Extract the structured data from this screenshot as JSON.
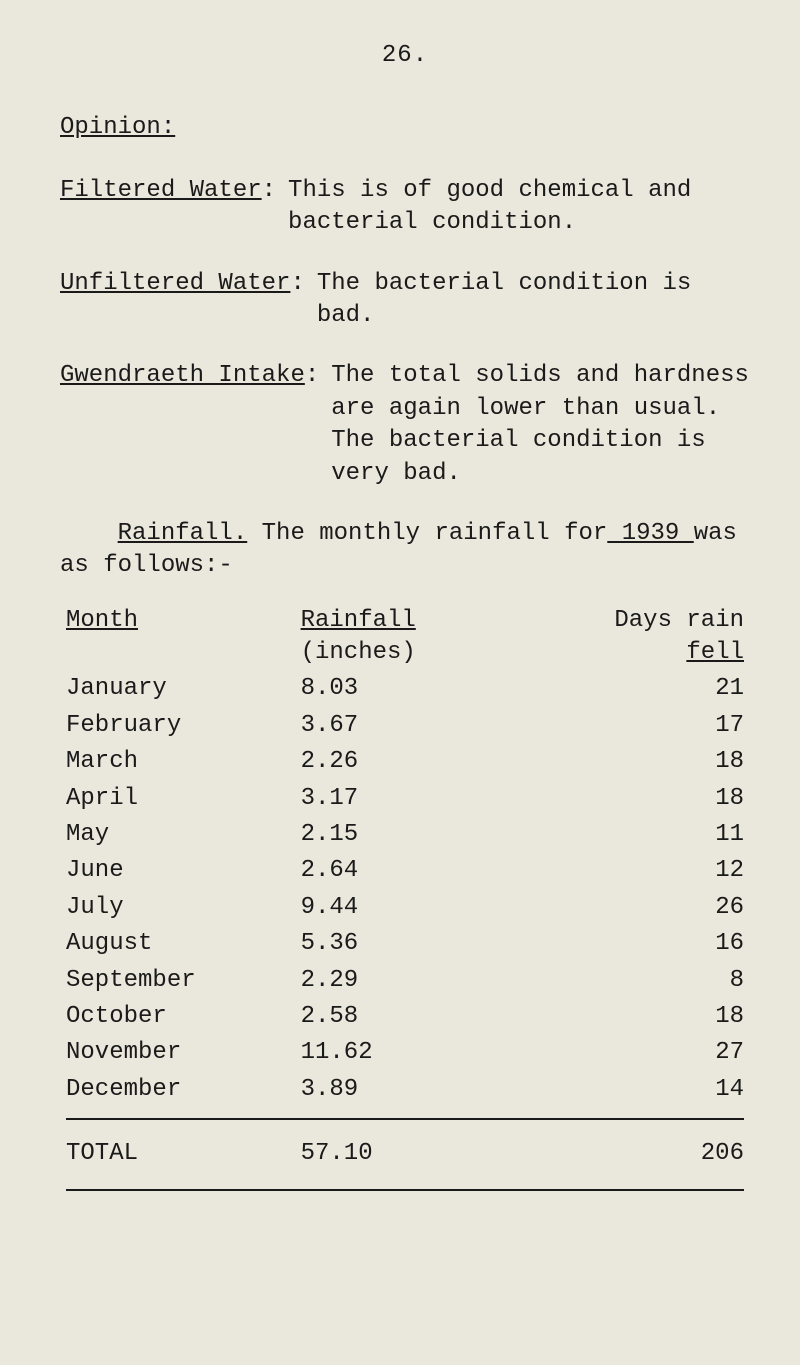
{
  "page_number": "26.",
  "opinion_heading": "Opinion:",
  "entries": {
    "filtered": {
      "label": "Filtered Water",
      "colon": ":",
      "text": "This is of good chemical and bacterial condition."
    },
    "unfiltered": {
      "label": "Unfiltered Water",
      "colon": ":",
      "text": "The bacterial condition is bad."
    },
    "gwendraeth": {
      "label": "Gwendraeth Intake",
      "colon": ":",
      "text": "The total solids and hardness are again lower than usual. The bacterial condition is very bad."
    }
  },
  "rainfall_sentence": {
    "label": "Rainfall.",
    "text_a": " The monthly rainfall for",
    "year_label": " 1939 ",
    "text_b": "was as follows:-"
  },
  "table": {
    "headers": {
      "month": "Month",
      "rain_top": "Rainfall",
      "rain_bot": "(inches)",
      "days_top": "Days rain",
      "days_bot": "fell"
    },
    "rows": [
      {
        "month": "January",
        "rain": "8.03",
        "days": "21"
      },
      {
        "month": "February",
        "rain": "3.67",
        "days": "17"
      },
      {
        "month": "March",
        "rain": "2.26",
        "days": "18"
      },
      {
        "month": "April",
        "rain": "3.17",
        "days": "18"
      },
      {
        "month": "May",
        "rain": "2.15",
        "days": "11"
      },
      {
        "month": "June",
        "rain": "2.64",
        "days": "12"
      },
      {
        "month": "July",
        "rain": "9.44",
        "days": "26"
      },
      {
        "month": "August",
        "rain": "5.36",
        "days": "16"
      },
      {
        "month": "September",
        "rain": "2.29",
        "days": "8"
      },
      {
        "month": "October",
        "rain": "2.58",
        "days": "18"
      },
      {
        "month": "November",
        "rain": "11.62",
        "days": "27"
      },
      {
        "month": "December",
        "rain": "3.89",
        "days": "14"
      }
    ],
    "total": {
      "label": "TOTAL",
      "rain": "57.10",
      "days": "206"
    }
  }
}
